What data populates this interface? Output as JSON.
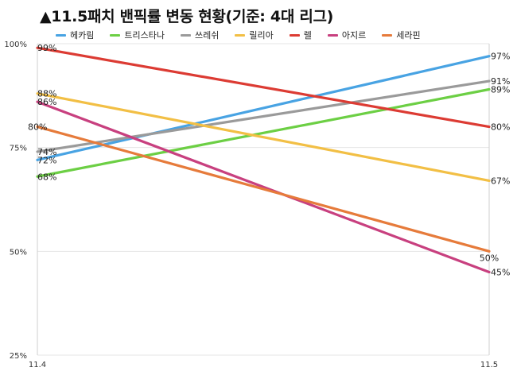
{
  "chart_data": {
    "type": "line",
    "title": "▲11.5패치 밴픽률 변동 현황(기준: 4대 리그)",
    "xlabel": "",
    "ylabel": "",
    "categories": [
      "11.4",
      "11.5"
    ],
    "ylim": [
      25,
      100
    ],
    "yticks": [
      25,
      50,
      75,
      100
    ],
    "ytick_labels": [
      "25%",
      "50%",
      "75%",
      "100%"
    ],
    "grid": "horizontal",
    "legend_position": "top",
    "series": [
      {
        "name": "헤카림",
        "color": "#48a3e3",
        "values": [
          72,
          97
        ],
        "labels": [
          "72%",
          "97%"
        ]
      },
      {
        "name": "트리스타나",
        "color": "#6ccf44",
        "values": [
          68,
          89
        ],
        "labels": [
          "68%",
          "89%"
        ]
      },
      {
        "name": "쓰레쉬",
        "color": "#9a9a9a",
        "values": [
          74,
          91
        ],
        "labels": [
          "74%",
          "91%"
        ]
      },
      {
        "name": "릴리아",
        "color": "#f2bf45",
        "values": [
          88,
          67
        ],
        "labels": [
          "88%",
          "67%"
        ]
      },
      {
        "name": "렐",
        "color": "#dc3b33",
        "values": [
          99,
          80
        ],
        "labels": [
          "99%",
          "80%"
        ]
      },
      {
        "name": "아지르",
        "color": "#c8407f",
        "values": [
          86,
          45
        ],
        "labels": [
          "86%",
          "45%"
        ]
      },
      {
        "name": "세라핀",
        "color": "#e67b3b",
        "values": [
          80,
          50
        ],
        "labels": [
          "80%",
          "50%"
        ]
      }
    ]
  }
}
